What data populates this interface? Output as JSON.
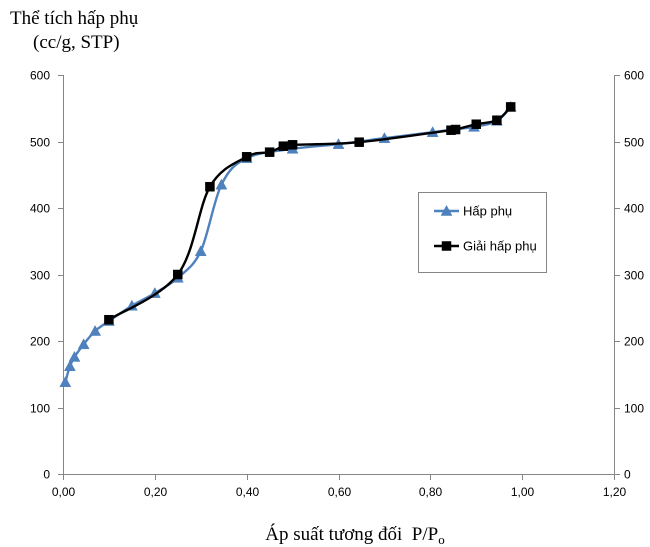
{
  "chart_data": {
    "type": "line",
    "ylabel_lines": [
      "Thể tích hấp phụ",
      "(cc/g, STP)"
    ],
    "xlabel": "Áp suất tương đối  P/P",
    "xlabel_sub": "o",
    "xlim": [
      0,
      1.2
    ],
    "ylim": [
      0,
      600
    ],
    "x_ticks": [
      0,
      0.2,
      0.4,
      0.6,
      0.8,
      1.0,
      1.2
    ],
    "x_tick_labels": [
      "0,00",
      "0,20",
      "0,40",
      "0,60",
      "0,80",
      "1,00",
      "1,20"
    ],
    "y_ticks": [
      0,
      100,
      200,
      300,
      400,
      500,
      600
    ],
    "y_tick_labels": [
      "0",
      "100",
      "200",
      "300",
      "400",
      "500",
      "600"
    ],
    "right_y_axis": true,
    "grid": false,
    "smoothed": true,
    "legend_position": "right",
    "series": [
      {
        "name": "Hấp phụ",
        "color": "#4F81BD",
        "marker": "triangle",
        "x": [
          0.005,
          0.015,
          0.025,
          0.045,
          0.07,
          0.1,
          0.15,
          0.2,
          0.25,
          0.3,
          0.345,
          0.4,
          0.5,
          0.6,
          0.7,
          0.805,
          0.895,
          0.945,
          0.975
        ],
        "y": [
          138,
          162,
          176,
          195,
          215,
          230,
          253,
          272,
          295,
          335,
          435,
          475,
          489,
          496,
          505,
          514,
          522,
          531,
          552
        ]
      },
      {
        "name": "Giải hấp phụ",
        "color": "#000000",
        "marker": "square",
        "x": [
          0.1,
          0.25,
          0.32,
          0.4,
          0.45,
          0.48,
          0.5,
          0.645,
          0.845,
          0.855,
          0.9,
          0.945,
          0.975
        ],
        "y": [
          232,
          300,
          432,
          477,
          484,
          493,
          495,
          499,
          517,
          518,
          526,
          532,
          552
        ]
      }
    ]
  }
}
